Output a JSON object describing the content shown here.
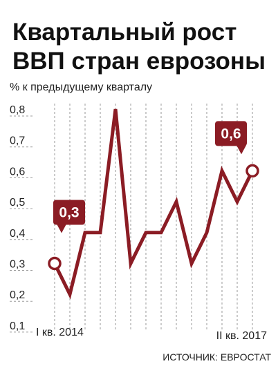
{
  "chart_data": {
    "type": "line",
    "title_lines": [
      "Квартальный рост",
      "ВВП стран еврозоны"
    ],
    "ylabel": "% к предыдущему кварталу",
    "x_labels": [
      "I кв. 2014",
      "II кв. 2017"
    ],
    "y_ticks": [
      "0,8",
      "0,7",
      "0,6",
      "0,5",
      "0,4",
      "0,3",
      "0,2",
      "0,1"
    ],
    "ylim": [
      0.1,
      0.8
    ],
    "values": [
      0.3,
      0.2,
      0.4,
      0.4,
      0.8,
      0.3,
      0.4,
      0.4,
      0.5,
      0.3,
      0.4,
      0.6,
      0.5,
      0.6
    ],
    "callouts": [
      {
        "index": 0,
        "label": "0,3"
      },
      {
        "index": 13,
        "label": "0,6"
      }
    ],
    "line_color": "#8b1c24",
    "grid": "vertical-dashed",
    "source": "ИСТОЧНИК: ЕВРОСТАТ"
  }
}
